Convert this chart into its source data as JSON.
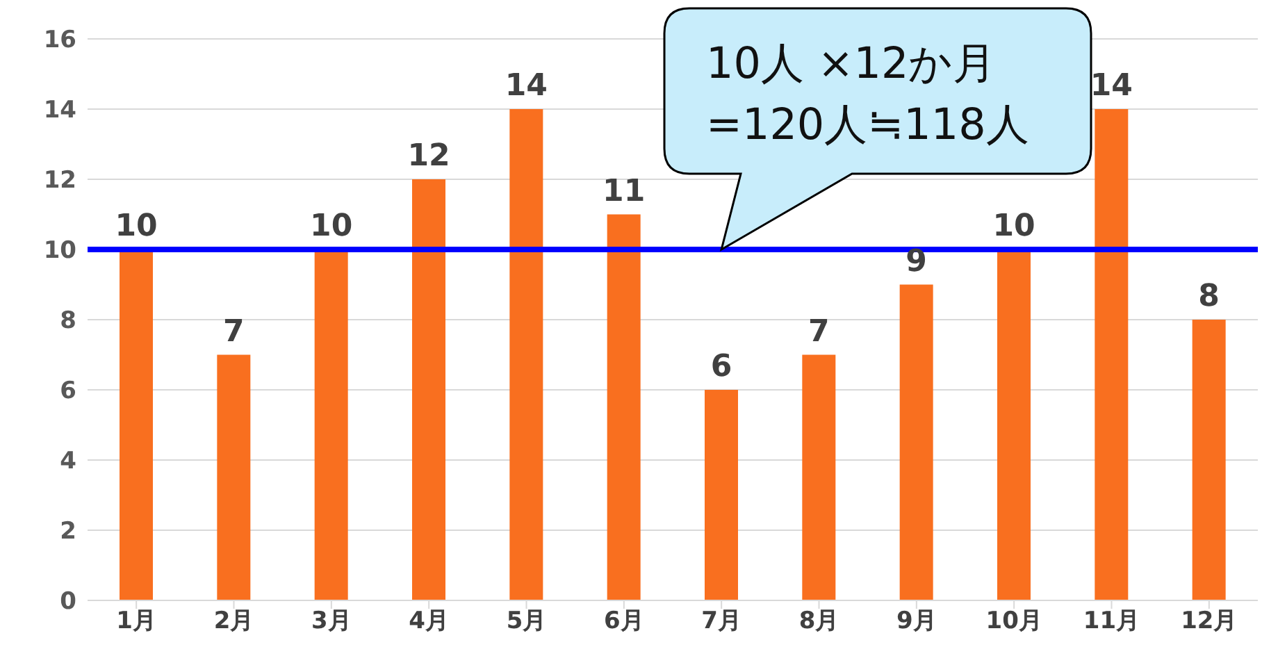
{
  "chart_data": {
    "type": "bar",
    "categories": [
      "1月",
      "2月",
      "3月",
      "4月",
      "5月",
      "6月",
      "7月",
      "8月",
      "9月",
      "10月",
      "11月",
      "12月"
    ],
    "values": [
      10,
      7,
      10,
      12,
      14,
      11,
      6,
      7,
      9,
      10,
      14,
      8
    ],
    "color": "#f96f1f",
    "ylim": [
      0,
      16
    ],
    "yticks": [
      0,
      2,
      4,
      6,
      8,
      10,
      12,
      14,
      16
    ],
    "grid": "y",
    "data_labels": true,
    "ref_lines": [
      {
        "axis": "y",
        "value": 10,
        "color": "#0000ff"
      }
    ],
    "annotations": [
      {
        "text": "10人 ×12か月\n=120人≒118人",
        "x": "7月",
        "y": 10
      }
    ]
  }
}
